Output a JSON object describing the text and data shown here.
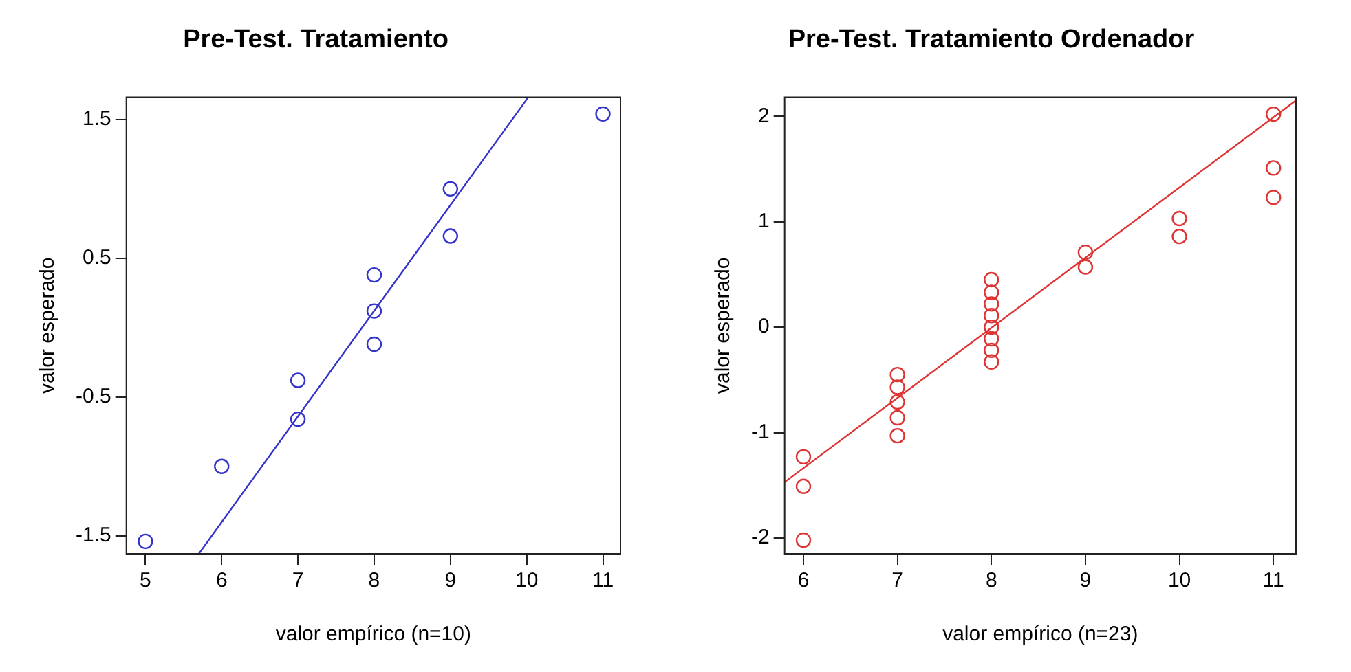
{
  "chart_data": [
    {
      "type": "scatter",
      "title": "Pre-Test. Tratamiento",
      "xlabel": "valor empírico (n=10)",
      "ylabel": "valor esperado",
      "xlim": [
        4.75,
        11.23
      ],
      "xticks": [
        5,
        6,
        7,
        8,
        9,
        10,
        11
      ],
      "ylim": [
        -1.63,
        1.66
      ],
      "yticks": [
        -1.5,
        -0.5,
        0.5,
        1.5
      ],
      "grid": false,
      "legend": false,
      "line_style": "solid",
      "series": [
        {
          "marker": "circle",
          "color": "#3333cc",
          "x": [
            5,
            6,
            7,
            7,
            8,
            8,
            8,
            9,
            9,
            11
          ],
          "values": [
            -1.54,
            -1.0,
            -0.66,
            -0.38,
            -0.12,
            0.12,
            0.38,
            0.66,
            1.0,
            1.54
          ]
        },
        {
          "type": "line",
          "color": "#3333cc",
          "x": [
            5.7,
            10.02
          ],
          "values": [
            -1.63,
            1.66
          ]
        }
      ]
    },
    {
      "type": "scatter",
      "title": "Pre-Test. Tratamiento Ordenador",
      "xlabel": "valor empírico (n=23)",
      "ylabel": "valor esperado",
      "xlim": [
        5.8,
        11.24
      ],
      "xticks": [
        6,
        7,
        8,
        9,
        10,
        11
      ],
      "ylim": [
        -2.15,
        2.18
      ],
      "yticks": [
        -2,
        -1,
        0,
        1,
        2
      ],
      "grid": false,
      "legend": false,
      "line_style": "solid",
      "series": [
        {
          "marker": "circle",
          "color": "#dd3333",
          "x": [
            6,
            6,
            6,
            7,
            7,
            7,
            7,
            7,
            8,
            8,
            8,
            8,
            8,
            8,
            8,
            8,
            9,
            9,
            10,
            10,
            11,
            11,
            11
          ],
          "values": [
            -2.02,
            -1.51,
            -1.23,
            -1.03,
            -0.86,
            -0.71,
            -0.57,
            -0.45,
            -0.33,
            -0.22,
            -0.11,
            0,
            0.11,
            0.22,
            0.33,
            0.45,
            0.57,
            0.71,
            0.86,
            1.03,
            1.23,
            1.51,
            2.02
          ]
        },
        {
          "type": "line",
          "color": "#dd3333",
          "x": [
            5.8,
            11.24
          ],
          "values": [
            -1.47,
            2.15
          ]
        }
      ]
    }
  ]
}
